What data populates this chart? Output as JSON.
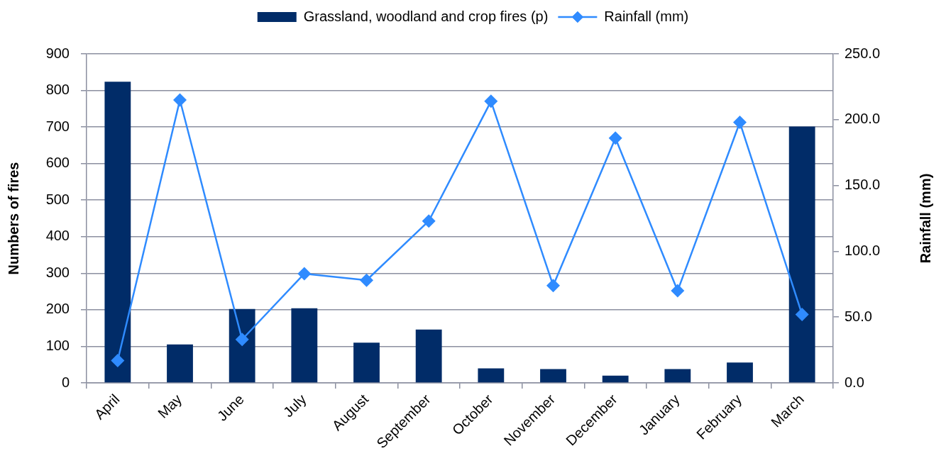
{
  "chart_data": {
    "type": "bar",
    "categories": [
      "April",
      "May",
      "June",
      "July",
      "August",
      "September",
      "October",
      "November",
      "December",
      "January",
      "February",
      "March"
    ],
    "series": [
      {
        "name": "Grassland, woodland and crop fires (p)",
        "color": "#012c68",
        "values": [
          824,
          105,
          202,
          204,
          110,
          146,
          40,
          38,
          20,
          38,
          56,
          701
        ]
      },
      {
        "name": "Rainfall (mm)",
        "type": "line",
        "axis": "y2",
        "color": "#2f8bff",
        "values": [
          17,
          215,
          33,
          83,
          78,
          123,
          214,
          74,
          186,
          70,
          198,
          52
        ]
      }
    ],
    "ylabel": "Numbers of fires",
    "y2label": "Rainfall (mm)",
    "ylim": [
      0,
      900
    ],
    "yticks": [
      0,
      100,
      200,
      300,
      400,
      500,
      600,
      700,
      800,
      900
    ],
    "y2lim": [
      0,
      250
    ],
    "y2ticks": [
      {
        "value": 0,
        "label": "0.0"
      },
      {
        "value": 50,
        "label": "50.0"
      },
      {
        "value": 100,
        "label": "100.0"
      },
      {
        "value": 150,
        "label": "150.0"
      },
      {
        "value": 200,
        "label": "200.0"
      },
      {
        "value": 250,
        "label": "250.0"
      }
    ],
    "grid": "y",
    "legend": "top",
    "marker": "diamond",
    "line_style": "solid"
  }
}
